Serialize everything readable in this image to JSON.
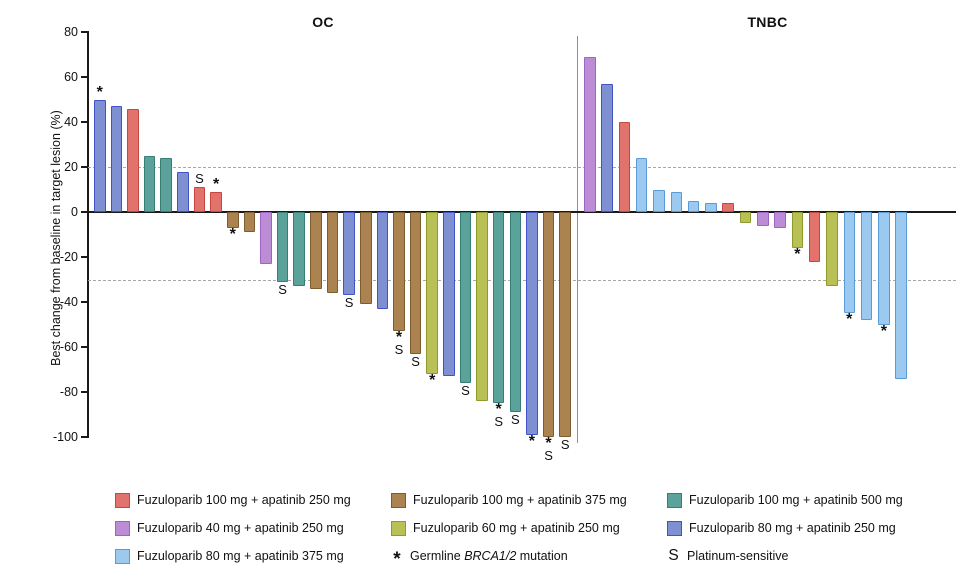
{
  "figure": {
    "background": "#ffffff",
    "axis_color": "#1a1a1a",
    "divider_color": "#8f8f8f",
    "dashed_line_color": "#a8a8a8"
  },
  "chart_data": {
    "type": "bar",
    "subtype": "waterfall",
    "title_left": "OC",
    "title_right": "TNBC",
    "ylabel": "Best change from baseline in target lesion (%)",
    "yticks": [
      80,
      60,
      40,
      20,
      0,
      -20,
      -40,
      -60,
      -80,
      -100
    ],
    "ylim": [
      -100,
      80
    ],
    "grid": "off",
    "reference_lines": [
      20,
      -30
    ],
    "zero_line": 0,
    "marker_meanings": {
      "*": "Germline BRCA1/2 mutation",
      "S": "Platinum-sensitive"
    },
    "series_colors": {
      "f100a250": {
        "label": "Fuzuloparib 100 mg + apatinib 250 mg",
        "fill": "#e2736c",
        "border": "#c8473c"
      },
      "f100a375": {
        "label": "Fuzuloparib 100 mg + apatinib 375 mg",
        "fill": "#aa8351",
        "border": "#7d5c2e"
      },
      "f100a500": {
        "label": "Fuzuloparib 100 mg + apatinib 500 mg",
        "fill": "#5aa29a",
        "border": "#357e74"
      },
      "f40a250": {
        "label": "Fuzuloparib 40 mg + apatinib 250 mg",
        "fill": "#bc8dd6",
        "border": "#9d64c6"
      },
      "f60a250": {
        "label": "Fuzuloparib 60 mg + apatinib 250 mg",
        "fill": "#b9c156",
        "border": "#8e9b2b"
      },
      "f80a250": {
        "label": "Fuzuloparib 80 mg + apatinib 250 mg",
        "fill": "#7e90d2",
        "border": "#4254c5"
      },
      "f80a375": {
        "label": "Fuzuloparib 80 mg + apatinib 375 mg",
        "fill": "#9bc9ef",
        "border": "#5b9bd5"
      }
    },
    "panels": [
      {
        "title": "OC",
        "bars": [
          {
            "value": 50,
            "group": "f80a250",
            "marker": "*"
          },
          {
            "value": 47,
            "group": "f80a250",
            "marker": ""
          },
          {
            "value": 46,
            "group": "f100a250",
            "marker": ""
          },
          {
            "value": 25,
            "group": "f100a500",
            "marker": ""
          },
          {
            "value": 24,
            "group": "f100a500",
            "marker": ""
          },
          {
            "value": 18,
            "group": "f80a250",
            "marker": ""
          },
          {
            "value": 11,
            "group": "f100a250",
            "marker": "S"
          },
          {
            "value": 9,
            "group": "f100a250",
            "marker": "*"
          },
          {
            "value": -7,
            "group": "f100a375",
            "marker": "*"
          },
          {
            "value": -9,
            "group": "f100a375",
            "marker": ""
          },
          {
            "value": -23,
            "group": "f40a250",
            "marker": ""
          },
          {
            "value": -31,
            "group": "f100a500",
            "marker": "S"
          },
          {
            "value": -33,
            "group": "f100a500",
            "marker": ""
          },
          {
            "value": -34,
            "group": "f100a375",
            "marker": ""
          },
          {
            "value": -36,
            "group": "f100a375",
            "marker": ""
          },
          {
            "value": -37,
            "group": "f80a250",
            "marker": "S"
          },
          {
            "value": -41,
            "group": "f100a375",
            "marker": ""
          },
          {
            "value": -43,
            "group": "f80a250",
            "marker": ""
          },
          {
            "value": -53,
            "group": "f100a375",
            "marker": "*S"
          },
          {
            "value": -63,
            "group": "f100a375",
            "marker": "S"
          },
          {
            "value": -72,
            "group": "f60a250",
            "marker": "*"
          },
          {
            "value": -73,
            "group": "f80a250",
            "marker": ""
          },
          {
            "value": -76,
            "group": "f100a500",
            "marker": "S"
          },
          {
            "value": -84,
            "group": "f60a250",
            "marker": ""
          },
          {
            "value": -85,
            "group": "f100a500",
            "marker": "*S"
          },
          {
            "value": -89,
            "group": "f100a500",
            "marker": "S"
          },
          {
            "value": -99,
            "group": "f80a250",
            "marker": "*"
          },
          {
            "value": -100,
            "group": "f100a375",
            "marker": "*S"
          },
          {
            "value": -100,
            "group": "f100a375",
            "marker": "S"
          }
        ]
      },
      {
        "title": "TNBC",
        "bars": [
          {
            "value": 69,
            "group": "f40a250",
            "marker": ""
          },
          {
            "value": 57,
            "group": "f80a250",
            "marker": ""
          },
          {
            "value": 40,
            "group": "f100a250",
            "marker": ""
          },
          {
            "value": 24,
            "group": "f80a375",
            "marker": ""
          },
          {
            "value": 10,
            "group": "f80a375",
            "marker": ""
          },
          {
            "value": 9,
            "group": "f80a375",
            "marker": ""
          },
          {
            "value": 5,
            "group": "f80a375",
            "marker": ""
          },
          {
            "value": 4,
            "group": "f80a375",
            "marker": ""
          },
          {
            "value": 4,
            "group": "f100a250",
            "marker": ""
          },
          {
            "value": -5,
            "group": "f60a250",
            "marker": ""
          },
          {
            "value": -6,
            "group": "f40a250",
            "marker": ""
          },
          {
            "value": -7,
            "group": "f40a250",
            "marker": ""
          },
          {
            "value": -16,
            "group": "f60a250",
            "marker": "*"
          },
          {
            "value": -22,
            "group": "f100a250",
            "marker": ""
          },
          {
            "value": -33,
            "group": "f60a250",
            "marker": ""
          },
          {
            "value": -45,
            "group": "f80a375",
            "marker": "*"
          },
          {
            "value": -48,
            "group": "f80a375",
            "marker": ""
          },
          {
            "value": -50,
            "group": "f80a375",
            "marker": "*"
          },
          {
            "value": -74,
            "group": "f80a375",
            "marker": ""
          }
        ]
      }
    ]
  },
  "legend": {
    "items": [
      {
        "kind": "swatch",
        "group": "f100a250",
        "label": "Fuzuloparib 100 mg + apatinib 250 mg"
      },
      {
        "kind": "swatch",
        "group": "f100a375",
        "label": "Fuzuloparib 100 mg + apatinib 375 mg"
      },
      {
        "kind": "swatch",
        "group": "f100a500",
        "label": "Fuzuloparib 100 mg + apatinib 500 mg"
      },
      {
        "kind": "swatch",
        "group": "f40a250",
        "label": "Fuzuloparib 40 mg + apatinib 250 mg"
      },
      {
        "kind": "swatch",
        "group": "f60a250",
        "label": "Fuzuloparib 60 mg + apatinib 250 mg"
      },
      {
        "kind": "swatch",
        "group": "f80a250",
        "label": "Fuzuloparib 80 mg + apatinib 250 mg"
      },
      {
        "kind": "swatch",
        "group": "f80a375",
        "label": "Fuzuloparib 80 mg + apatinib 375 mg"
      },
      {
        "kind": "star",
        "symbol": "*",
        "label_prefix": "Germline ",
        "label_italic": "BRCA1/2",
        "label_suffix": " mutation"
      },
      {
        "kind": "s",
        "symbol": "S",
        "label": "Platinum-sensitive"
      }
    ]
  }
}
